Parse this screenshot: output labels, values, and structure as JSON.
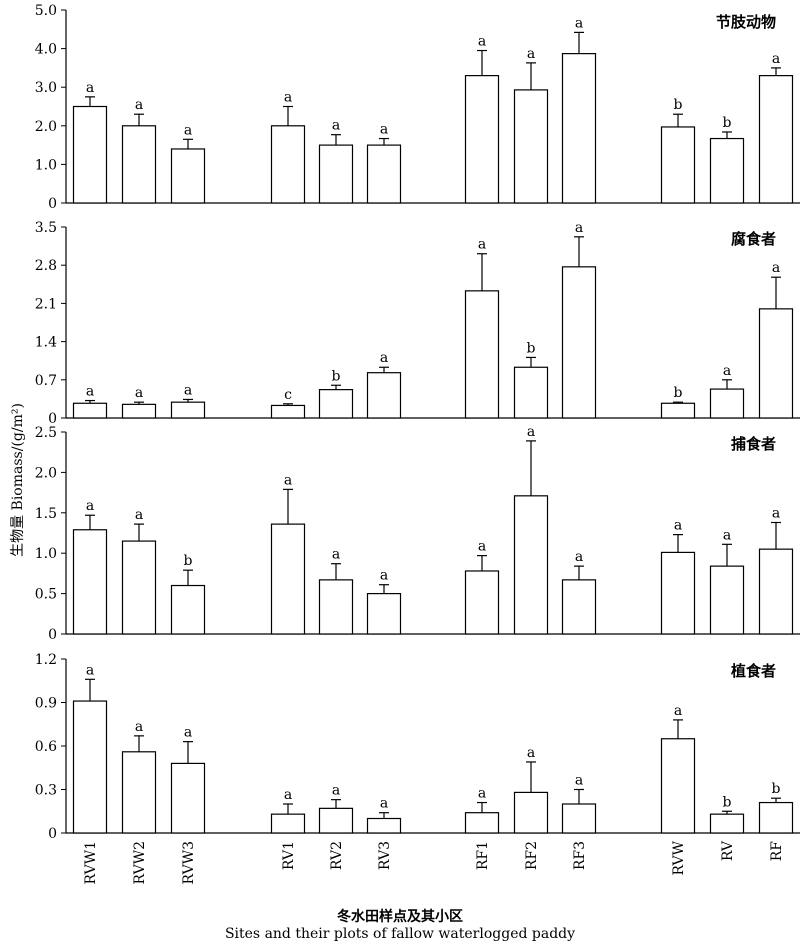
{
  "y_axis_label": "生物量 Biomass/(g/m²)",
  "x_axis_title_cn": "冬水田样点及其小区",
  "x_axis_title_en": "Sites  and their plots of fallow waterlogged paddy",
  "chart_data": [
    {
      "type": "bar",
      "title": "节肢动物",
      "categories": [
        "RVW1",
        "RVW2",
        "RVW3",
        "RV1",
        "RV2",
        "RV3",
        "RF1",
        "RF2",
        "RF3",
        "RVW",
        "RV",
        "RF"
      ],
      "values": [
        2.5,
        2.0,
        1.4,
        2.0,
        1.5,
        1.5,
        3.3,
        2.93,
        3.87,
        1.97,
        1.67,
        3.3
      ],
      "errors": [
        0.25,
        0.3,
        0.25,
        0.5,
        0.27,
        0.17,
        0.65,
        0.7,
        0.55,
        0.33,
        0.17,
        0.2
      ],
      "letters": [
        "a",
        "a",
        "a",
        "a",
        "a",
        "a",
        "a",
        "a",
        "a",
        "b",
        "b",
        "a"
      ],
      "ylim": [
        0,
        5.0
      ],
      "yticks": [
        "0",
        "1.0",
        "2.0",
        "3.0",
        "4.0",
        "5.0"
      ],
      "ytick_values": [
        0,
        1,
        2,
        3,
        4,
        5
      ]
    },
    {
      "type": "bar",
      "title": "腐食者",
      "categories": [
        "RVW1",
        "RVW2",
        "RVW3",
        "RV1",
        "RV2",
        "RV3",
        "RF1",
        "RF2",
        "RF3",
        "RVW",
        "RV",
        "RF"
      ],
      "values": [
        0.27,
        0.25,
        0.29,
        0.23,
        0.52,
        0.83,
        2.33,
        0.93,
        2.77,
        0.27,
        0.53,
        2.0
      ],
      "errors": [
        0.05,
        0.04,
        0.05,
        0.03,
        0.08,
        0.1,
        0.68,
        0.18,
        0.55,
        0.02,
        0.17,
        0.58
      ],
      "letters": [
        "a",
        "a",
        "a",
        "c",
        "b",
        "a",
        "a",
        "b",
        "a",
        "b",
        "a",
        "a"
      ],
      "ylim": [
        0,
        3.5
      ],
      "yticks": [
        "0",
        "0.7",
        "1.4",
        "2.1",
        "2.8",
        "3.5"
      ],
      "ytick_values": [
        0,
        0.7,
        1.4,
        2.1,
        2.8,
        3.5
      ]
    },
    {
      "type": "bar",
      "title": "捕食者",
      "categories": [
        "RVW1",
        "RVW2",
        "RVW3",
        "RV1",
        "RV2",
        "RV3",
        "RF1",
        "RF2",
        "RF3",
        "RVW",
        "RV",
        "RF"
      ],
      "values": [
        1.29,
        1.15,
        0.6,
        1.36,
        0.67,
        0.5,
        0.78,
        1.71,
        0.67,
        1.01,
        0.84,
        1.05
      ],
      "errors": [
        0.18,
        0.21,
        0.19,
        0.43,
        0.2,
        0.11,
        0.19,
        0.68,
        0.17,
        0.22,
        0.27,
        0.33
      ],
      "letters": [
        "a",
        "a",
        "b",
        "a",
        "a",
        "a",
        "a",
        "a",
        "a",
        "a",
        "a",
        "a"
      ],
      "ylim": [
        0,
        2.5
      ],
      "yticks": [
        "0",
        "0.5",
        "1.0",
        "1.5",
        "2.0",
        "2.5"
      ],
      "ytick_values": [
        0,
        0.5,
        1,
        1.5,
        2,
        2.5
      ]
    },
    {
      "type": "bar",
      "title": "植食者",
      "categories": [
        "RVW1",
        "RVW2",
        "RVW3",
        "RV1",
        "RV2",
        "RV3",
        "RF1",
        "RF2",
        "RF3",
        "RVW",
        "RV",
        "RF"
      ],
      "values": [
        0.91,
        0.56,
        0.48,
        0.13,
        0.17,
        0.1,
        0.14,
        0.28,
        0.2,
        0.65,
        0.13,
        0.21
      ],
      "errors": [
        0.15,
        0.11,
        0.15,
        0.07,
        0.06,
        0.04,
        0.07,
        0.21,
        0.1,
        0.13,
        0.02,
        0.03
      ],
      "letters": [
        "a",
        "a",
        "a",
        "a",
        "a",
        "a",
        "a",
        "a",
        "a",
        "a",
        "b",
        "b"
      ],
      "ylim": [
        0,
        1.2
      ],
      "yticks": [
        "0",
        "0.3",
        "0.6",
        "0.9",
        "1.2"
      ],
      "ytick_values": [
        0,
        0.3,
        0.6,
        0.9,
        1.2
      ]
    }
  ]
}
